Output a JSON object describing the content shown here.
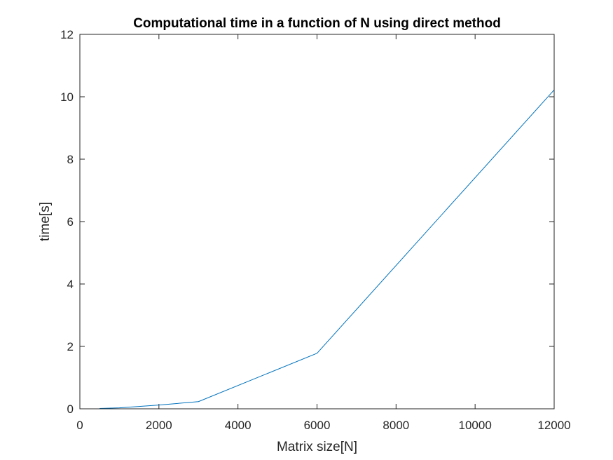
{
  "chart_data": {
    "type": "line",
    "title": "Computational time in a function of N using direct method",
    "xlabel": "Matrix size[N]",
    "ylabel": "time[s]",
    "xlim": [
      0,
      12000
    ],
    "ylim": [
      0,
      12
    ],
    "xticks": [
      0,
      2000,
      4000,
      6000,
      8000,
      10000,
      12000
    ],
    "yticks": [
      0,
      2,
      4,
      6,
      8,
      10,
      12
    ],
    "grid": false,
    "box": true,
    "series": [
      {
        "color": "#0072bd",
        "x": [
          500,
          1000,
          2000,
          3000,
          6000,
          12000
        ],
        "y": [
          0.01,
          0.03,
          0.12,
          0.23,
          1.78,
          10.22
        ]
      }
    ]
  }
}
